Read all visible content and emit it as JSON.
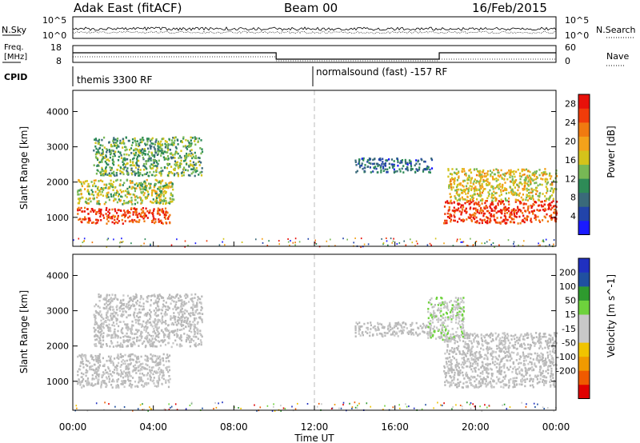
{
  "header": {
    "station": "Adak East (fitACF)",
    "beam": "Beam 00",
    "date": "16/Feb/2015"
  },
  "top_panels": {
    "noise_left_label": "N.Sky",
    "noise_right_label": "N.Search",
    "noise_left_ticks": [
      "10^5",
      "10^0"
    ],
    "noise_right_ticks": [
      "10^5",
      "10^0"
    ],
    "freq_label_line1": "Freq.",
    "freq_label_line2": "[MHz]",
    "freq_ticks": [
      "18",
      "8"
    ],
    "nave_label": "Nave",
    "nave_ticks": [
      "60",
      "0"
    ],
    "cpid_label": "CPID",
    "cpid_segments": [
      {
        "label": "themis 3300 RF",
        "start_hour": 0
      },
      {
        "label": "normalsound (fast) -157 RF",
        "start_hour": 12
      }
    ]
  },
  "colors": {
    "power": [
      "#1a1aff",
      "#2244aa",
      "#3a6a7a",
      "#2e8b57",
      "#77b855",
      "#d4c31a",
      "#f3a21a",
      "#f07a10",
      "#f03c0a",
      "#e8110a"
    ],
    "velocity": [
      "#e00000",
      "#ef5a00",
      "#f09a00",
      "#f0c400",
      "#c8c8c8",
      "#c8c8c8",
      "#6ed23c",
      "#2e9a2e",
      "#2050a0",
      "#2030c0"
    ],
    "ground_scatter": "#b8b8b8",
    "guide_line": "#bbbbbb"
  },
  "chart_data": [
    {
      "type": "heatmap",
      "title": "",
      "xlabel": "Time UT",
      "ylabel": "Slant Range [km]",
      "x_ticks": [
        "00:00",
        "04:00",
        "08:00",
        "12:00",
        "16:00",
        "20:00",
        "00:00"
      ],
      "y_ticks": [
        "1000",
        "2000",
        "3000",
        "4000"
      ],
      "xlim_hours": [
        0,
        24
      ],
      "ylim_km": [
        180,
        4600
      ],
      "colorbar_label": "Power [dB]",
      "colorbar_ticks": [
        "4",
        "8",
        "12",
        "16",
        "20",
        "24",
        "28"
      ],
      "colorbar_range": [
        0,
        30
      ],
      "regions": [
        {
          "name": "early-band-1000km",
          "t_start": 0.2,
          "t_end": 4.8,
          "r_low": 850,
          "r_high": 1300,
          "level": 26
        },
        {
          "name": "early-band-1600km",
          "t_start": 0.2,
          "t_end": 5.0,
          "r_low": 1400,
          "r_high": 2100,
          "level": 15
        },
        {
          "name": "early-band-upper",
          "t_start": 1.0,
          "t_end": 6.4,
          "r_low": 2200,
          "r_high": 3300,
          "level": 12
        },
        {
          "name": "night-2500km",
          "t_start": 14.0,
          "t_end": 17.8,
          "r_low": 2300,
          "r_high": 2700,
          "level": 7
        },
        {
          "name": "late-band-1000km",
          "t_start": 18.4,
          "t_end": 24.0,
          "r_low": 850,
          "r_high": 1500,
          "level": 26
        },
        {
          "name": "late-band-2000km",
          "t_start": 18.6,
          "t_end": 24.0,
          "r_low": 1500,
          "r_high": 2400,
          "level": 17
        }
      ]
    },
    {
      "type": "heatmap",
      "title": "",
      "xlabel": "Time UT",
      "ylabel": "Slant Range [km]",
      "x_ticks": [
        "00:00",
        "04:00",
        "08:00",
        "12:00",
        "16:00",
        "20:00",
        "00:00"
      ],
      "y_ticks": [
        "1000",
        "2000",
        "3000",
        "4000"
      ],
      "xlim_hours": [
        0,
        24
      ],
      "ylim_km": [
        180,
        4600
      ],
      "colorbar_label": "Velocity [m s^-1]",
      "colorbar_ticks": [
        "200",
        "100",
        "50",
        "15",
        "-15",
        "-50",
        "-100",
        "-200"
      ],
      "colorbar_range": [
        -250,
        250
      ],
      "regions": [
        {
          "name": "early-ground-scatter",
          "t_start": 0.2,
          "t_end": 4.8,
          "r_low": 850,
          "r_high": 1800,
          "level": 0
        },
        {
          "name": "early-upper",
          "t_start": 1.0,
          "t_end": 6.4,
          "r_low": 2000,
          "r_high": 3500,
          "level": 0
        },
        {
          "name": "night-2500km",
          "t_start": 14.0,
          "t_end": 17.8,
          "r_low": 2300,
          "r_high": 2700,
          "level": 0
        },
        {
          "name": "late-ground-scatter",
          "t_start": 18.4,
          "t_end": 24.0,
          "r_low": 850,
          "r_high": 2400,
          "level": 0
        },
        {
          "name": "late-green-edge",
          "t_start": 17.6,
          "t_end": 19.4,
          "r_low": 2200,
          "r_high": 3400,
          "level": 40
        }
      ]
    }
  ]
}
